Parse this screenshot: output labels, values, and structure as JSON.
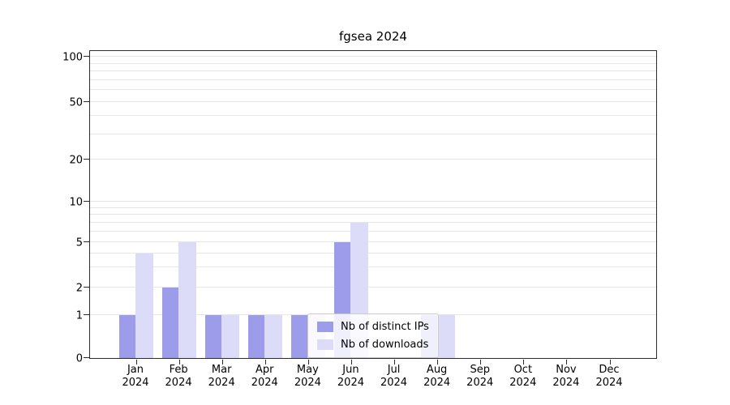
{
  "chart_data": {
    "type": "bar",
    "title": "fgsea 2024",
    "categories": [
      "Jan 2024",
      "Feb 2024",
      "Mar 2024",
      "Apr 2024",
      "May 2024",
      "Jun 2024",
      "Jul 2024",
      "Aug 2024",
      "Sep 2024",
      "Oct 2024",
      "Nov 2024",
      "Dec 2024"
    ],
    "series": [
      {
        "name": "Nb of distinct IPs",
        "color": "#9c9ceb",
        "values": [
          1,
          2,
          1,
          1,
          1,
          5,
          0,
          1,
          0,
          0,
          0,
          0
        ]
      },
      {
        "name": "Nb of downloads",
        "color": "#dcdcf8",
        "values": [
          4,
          5,
          1,
          1,
          1,
          7,
          0,
          1,
          0,
          0,
          0,
          0
        ]
      }
    ],
    "xlabel": "",
    "ylabel": "",
    "y_ticks": [
      0,
      1,
      2,
      5,
      10,
      20,
      50,
      100
    ],
    "y_scale": "log",
    "ylim": [
      0,
      110
    ],
    "grid": true,
    "legend_position": "lower center"
  }
}
